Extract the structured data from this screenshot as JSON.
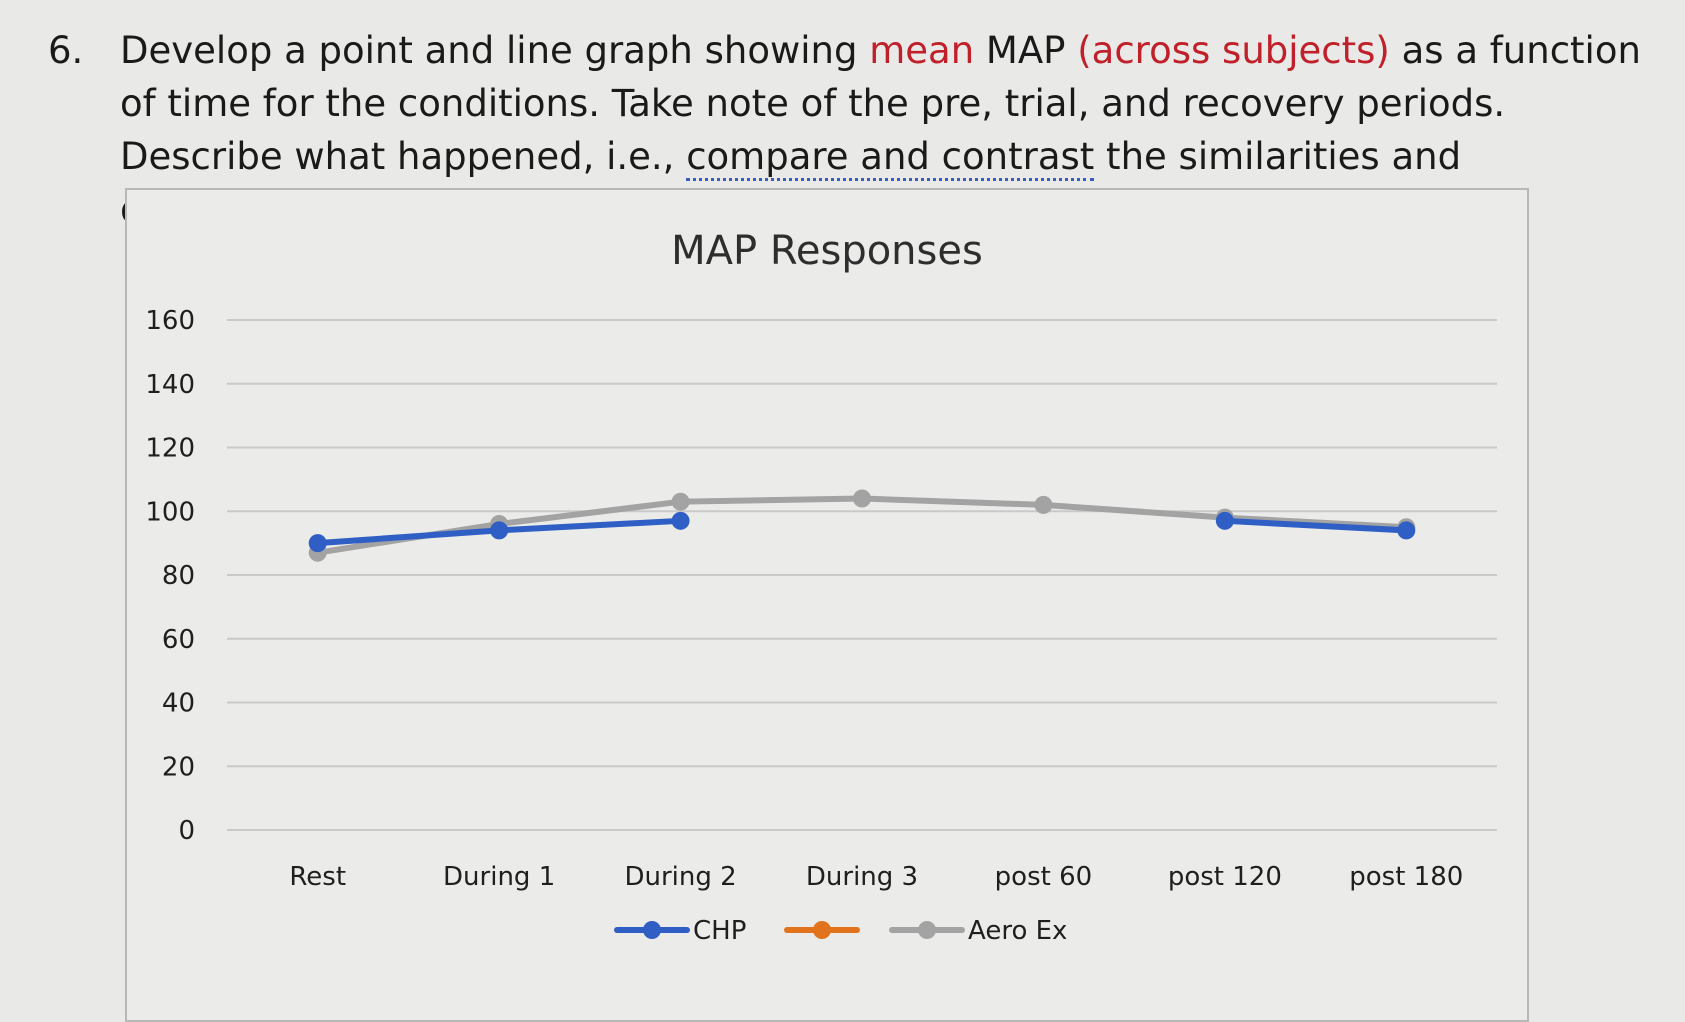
{
  "question": {
    "number": "6.",
    "part1": "Develop a point and line graph showing ",
    "highlight1": "mean",
    "part2": " MAP ",
    "highlight2": "(across subjects)",
    "part3": " as a function of time for the conditions. Take note of the pre, trial, and recovery periods. Describe what happened, i.e., ",
    "underlined": "compare and contrast",
    "part4": " the similarities and differences between the trials."
  },
  "chart_data": {
    "type": "line",
    "title": "MAP Responses",
    "categories": [
      "Rest",
      "During 1",
      "During 2",
      "During 3",
      "post 60",
      "post 120",
      "post 180"
    ],
    "ylim": [
      0,
      160
    ],
    "yticks": [
      0,
      20,
      40,
      60,
      80,
      100,
      120,
      140,
      160
    ],
    "ytick_labels": [
      "0",
      "20",
      "40",
      "60",
      "80",
      "100",
      "120",
      "140",
      "160"
    ],
    "grid": true,
    "legend_position": "bottom",
    "series": [
      {
        "name": "CHP",
        "color": "#2f5fc4",
        "values": [
          90,
          94,
          97,
          null,
          null,
          97,
          94
        ]
      },
      {
        "name": "",
        "color": "#e0731c",
        "values": [
          null,
          null,
          null,
          null,
          null,
          null,
          null
        ]
      },
      {
        "name": "Aero Ex",
        "color": "#a3a3a3",
        "values": [
          87,
          96,
          103,
          104,
          102,
          98,
          95
        ]
      }
    ]
  }
}
